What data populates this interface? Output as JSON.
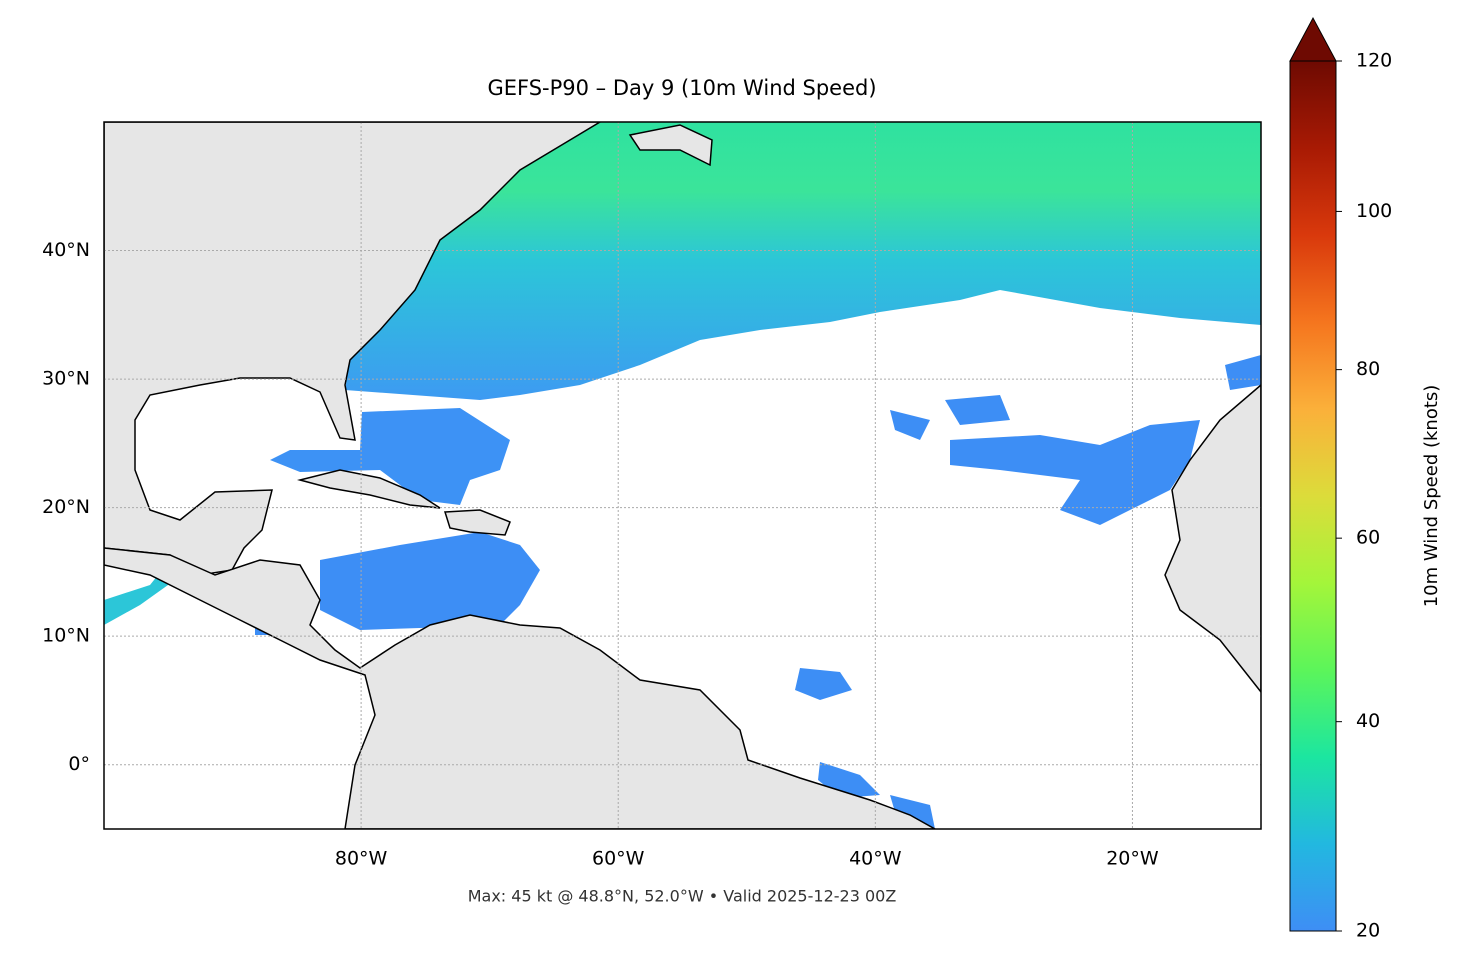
{
  "chart_data": {
    "type": "map",
    "title": "GEFS-P90 – Day 9 (10m Wind Speed)",
    "annotation": "Max: 45 kt @ 48.8°N, 52.0°W • Valid 2025-12-23 00Z",
    "xlim": [
      -100,
      -10
    ],
    "ylim": [
      -5,
      50
    ],
    "xticks": [
      {
        "value": -80,
        "label": "80°W"
      },
      {
        "value": -60,
        "label": "60°W"
      },
      {
        "value": -40,
        "label": "40°W"
      },
      {
        "value": -20,
        "label": "20°W"
      }
    ],
    "yticks": [
      {
        "value": 0,
        "label": "0°"
      },
      {
        "value": 10,
        "label": "10°N"
      },
      {
        "value": 20,
        "label": "20°N"
      },
      {
        "value": 30,
        "label": "30°N"
      },
      {
        "value": 40,
        "label": "40°N"
      }
    ],
    "grid": true,
    "colorbar": {
      "label": "10m Wind Speed (knots)",
      "lim": [
        20,
        120
      ],
      "ticks": [
        20,
        40,
        60,
        80,
        100,
        120
      ],
      "extend": "max",
      "gamma": 0.75,
      "colors": [
        "#3e8ef5",
        "#22b8e0",
        "#1ce6a0",
        "#5cf55a",
        "#a4f53a",
        "#dcdc3a",
        "#fbb03a",
        "#f5751e",
        "#d9390c",
        "#a81a04",
        "#6e0a02"
      ]
    }
  }
}
